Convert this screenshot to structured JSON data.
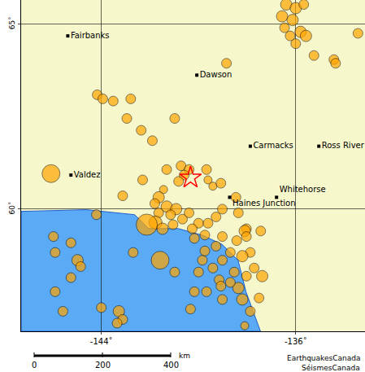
{
  "chart_data": {
    "type": "scatter",
    "marker": "circle",
    "color": "#ffa500",
    "grid": true,
    "xlim": [
      -147.3,
      -133.15
    ],
    "ylim": [
      56.7,
      65.65
    ],
    "xticks": [
      {
        "value": -144,
        "label": "-144˚"
      },
      {
        "value": -136,
        "label": "-136˚"
      }
    ],
    "yticks": [
      {
        "value": 60,
        "label": "60˚"
      },
      {
        "value": 65,
        "label": "65˚"
      }
    ],
    "x": [
      -136.39,
      -136.0,
      -135.67,
      -136.56,
      -136.13,
      -135.8,
      -136.23,
      -135.58,
      -136.0,
      -136.46,
      -133.44,
      -134.43,
      -134.36,
      -135.25,
      -138.85,
      -144.17,
      -143.94,
      -143.51,
      -142.79,
      -142.95,
      -142.36,
      -141.9,
      -140.98,
      -146.07,
      -140.72,
      -140.39,
      -140.59,
      -140.82,
      -139.67,
      -139.61,
      -139.41,
      -139.08,
      -141.31,
      -141.44,
      -142.3,
      -143.12,
      -144.2,
      -141.64,
      -141.8,
      -141.31,
      -140.92,
      -141.15,
      -141.64,
      -141.77,
      -142.13,
      -141.48,
      -141.05,
      -140.66,
      -140.39,
      -140.0,
      -139.61,
      -140.26,
      -139.74,
      -140.17,
      -139.28,
      -138.36,
      -139.02,
      -138.46,
      -138.03,
      -138.1,
      -137.44,
      -138.03,
      -137.87,
      -138.2,
      -137.71,
      -137.38,
      -138.03,
      -138.53,
      -138.36,
      -138.2,
      -137.87,
      -137.51,
      -139.02,
      -139.15,
      -139.84,
      -139.67,
      -139.02,
      -139.08,
      -138.69,
      -140.17,
      -140.0,
      -139.41,
      -139.28,
      -138.69,
      -138.43,
      -139.02,
      -139.74,
      -145.97,
      -145.9,
      -145.25,
      -144.98,
      -144.85,
      -145.25,
      -145.9,
      -145.58,
      -144.0,
      -143.28,
      -143.12,
      -143.35,
      -141.58,
      -142.69,
      -140.98,
      -140.33,
      -138.1
    ],
    "y": [
      65.53,
      65.43,
      65.53,
      65.21,
      65.11,
      64.79,
      64.68,
      64.68,
      64.47,
      64.9,
      64.75,
      64.04,
      63.94,
      64.15,
      63.94,
      63.09,
      62.98,
      62.92,
      62.98,
      62.45,
      62.13,
      61.85,
      62.45,
      60.96,
      61.17,
      61.07,
      60.92,
      60.75,
      61.07,
      60.79,
      60.62,
      60.7,
      61.07,
      60.53,
      60.79,
      60.36,
      59.85,
      60.32,
      60.15,
      60.07,
      60.0,
      59.85,
      59.9,
      59.64,
      59.58,
      59.47,
      59.58,
      59.73,
      59.9,
      59.62,
      59.62,
      59.47,
      59.3,
      59.21,
      59.79,
      59.9,
      60.0,
      60.32,
      59.47,
      59.41,
      59.41,
      59.26,
      58.83,
      58.73,
      58.41,
      58.19,
      58.19,
      58.3,
      57.87,
      57.56,
      57.24,
      57.6,
      58.62,
      58.09,
      58.62,
      57.77,
      57.56,
      57.92,
      58.02,
      57.77,
      58.3,
      58.41,
      59.0,
      58.83,
      59.15,
      59.26,
      58.87,
      59.26,
      58.83,
      59.09,
      58.62,
      58.45,
      58.15,
      57.77,
      57.24,
      57.34,
      57.24,
      57.02,
      56.92,
      58.62,
      58.83,
      58.3,
      57.3,
      56.85
    ],
    "sizes": [
      14,
      14,
      12,
      14,
      14,
      14,
      12,
      14,
      12,
      12,
      12,
      12,
      12,
      12,
      12,
      12,
      12,
      12,
      12,
      12,
      12,
      12,
      12,
      22,
      12,
      12,
      12,
      12,
      12,
      10,
      10,
      12,
      12,
      10,
      12,
      12,
      12,
      14,
      12,
      14,
      14,
      12,
      12,
      16,
      26,
      14,
      12,
      12,
      12,
      12,
      12,
      12,
      12,
      12,
      12,
      12,
      12,
      12,
      12,
      14,
      12,
      12,
      12,
      14,
      12,
      14,
      12,
      12,
      14,
      14,
      12,
      12,
      12,
      12,
      12,
      12,
      12,
      12,
      12,
      12,
      12,
      12,
      12,
      12,
      12,
      12,
      12,
      12,
      12,
      12,
      14,
      12,
      12,
      12,
      12,
      12,
      14,
      12,
      12,
      22,
      12,
      12,
      12,
      10
    ],
    "epicenter": {
      "x": -140.33,
      "y": 60.85,
      "marker": "star",
      "color": "#ff0000"
    },
    "places": [
      {
        "name": "Fairbanks",
        "x": -145.38,
        "y": 64.68
      },
      {
        "name": "Dawson",
        "x": -140.07,
        "y": 63.62
      },
      {
        "name": "Carmacks",
        "x": -137.87,
        "y": 61.7
      },
      {
        "name": "Ross River",
        "x": -135.05,
        "y": 61.7
      },
      {
        "name": "Valdez",
        "x": -145.25,
        "y": 60.92
      },
      {
        "name": "Haines Junction",
        "x": -138.72,
        "y": 60.32
      },
      {
        "name": "Whitehorse",
        "x": -136.79,
        "y": 60.32
      }
    ],
    "scale_bar": {
      "ticks": [
        0,
        200,
        400
      ],
      "unit": "km"
    },
    "credits": [
      "EarthquakesCanada",
      "SéismesCanada"
    ]
  }
}
